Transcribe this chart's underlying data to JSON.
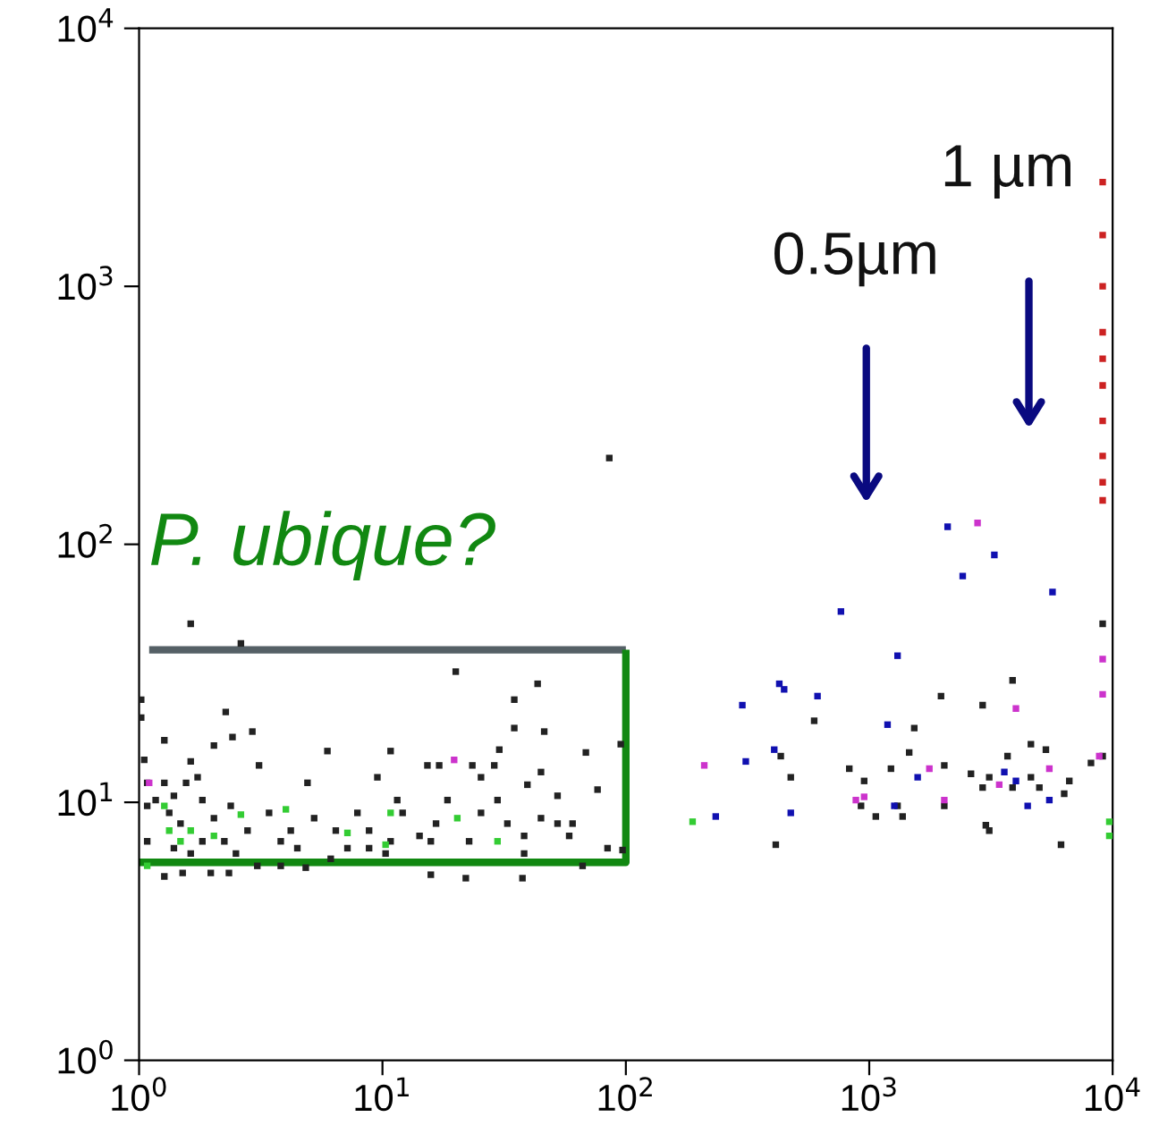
{
  "chart_data": {
    "type": "scatter",
    "log": "xy",
    "xlim": [
      1,
      10000
    ],
    "ylim": [
      1,
      10000
    ],
    "xticks": [
      {
        "value": 1,
        "label": "10$^{0}$"
      },
      {
        "value": 10,
        "label": "10$^{1}$"
      },
      {
        "value": 100,
        "label": "10$^{2}$"
      },
      {
        "value": 1000,
        "label": "10$^{3}$"
      },
      {
        "value": 10000,
        "label": "10$^{4}$"
      }
    ],
    "yticks": [
      {
        "value": 1,
        "label": "10$^{0}$"
      },
      {
        "value": 10,
        "label": "10$^{1}$"
      },
      {
        "value": 100,
        "label": "10$^{2}$"
      },
      {
        "value": 1000,
        "label": "10$^{3}$"
      },
      {
        "value": 10000,
        "label": "10$^{4}$"
      }
    ],
    "grid": false,
    "legend": false,
    "marker": "square",
    "annotations": [
      "P. ubique?",
      "0.5µm",
      "1 µm"
    ],
    "series": [
      {
        "color": "#222222",
        "x": [
          1.63,
          2.62,
          20.0,
          43.4,
          34.8,
          2.27,
          34.8,
          46.2,
          2.92,
          2.42,
          1.27,
          95.3,
          2.03,
          5.94,
          10.8,
          30.2,
          68.5,
          1.63,
          3.11,
          15.3,
          17.1,
          23.4,
          28.8,
          44.8,
          4.92,
          9.53,
          25.4,
          39.4,
          52.4,
          76.5,
          1.08,
          1.17,
          1.33,
          1.48,
          1.82,
          2.03,
          2.38,
          2.79,
          3.42,
          4.2,
          5.24,
          6.43,
          7.89,
          8.81,
          12.1,
          14.2,
          16.6,
          15.8,
          22.7,
          25.4,
          29.7,
          32.6,
          38.2,
          44.8,
          52.4,
          60.4,
          66.4,
          96.9,
          84.1,
          15.8,
          22.0,
          37.6,
          1.27,
          1.51,
          1.97,
          2.34,
          3.06,
          3.82,
          4.84,
          6.13,
          7.18,
          10.3,
          11.5,
          18.5,
          1.08,
          1.08,
          1.05,
          1.02,
          1.02,
          1.27,
          1.39,
          1.63,
          1.82,
          2.24,
          2.5,
          1.56,
          1.74,
          1.39,
          3.82,
          4.47,
          8.81,
          10.8,
          38.2,
          58.5,
          85.5,
          3880,
          1972,
          2923,
          594,
          1531,
          4615,
          5318,
          433,
          1459,
          3700,
          828,
          1228,
          2034,
          476,
          953,
          2618,
          3112,
          4615,
          6637,
          2923,
          3880,
          5000,
          6324,
          925,
          1307,
          2034,
          1064,
          1371,
          3013,
          3112,
          413,
          6138,
          8147,
          9100,
          9100
        ],
        "values": [
          49.2,
          41.3,
          32.1,
          28.8,
          25.0,
          22.4,
          19.4,
          18.8,
          18.8,
          17.9,
          17.4,
          16.8,
          16.6,
          15.8,
          15.8,
          16.0,
          15.6,
          14.4,
          13.9,
          13.9,
          13.9,
          13.9,
          13.9,
          13.1,
          11.9,
          12.5,
          12.5,
          11.7,
          10.6,
          11.2,
          9.69,
          10.2,
          9.1,
          8.27,
          10.2,
          8.68,
          9.69,
          7.77,
          9.1,
          7.77,
          8.68,
          7.77,
          9.1,
          7.77,
          9.1,
          7.41,
          8.27,
          7.06,
          7.06,
          9.1,
          10.2,
          8.27,
          7.41,
          8.68,
          8.27,
          8.27,
          5.67,
          6.53,
          6.64,
          5.24,
          5.08,
          5.08,
          5.16,
          5.32,
          5.32,
          5.32,
          5.67,
          5.67,
          5.58,
          6.04,
          6.64,
          6.33,
          10.2,
          10.2,
          7.06,
          11.9,
          14.6,
          21.3,
          25.0,
          11.9,
          6.64,
          6.33,
          7.06,
          7.06,
          6.33,
          11.9,
          12.5,
          10.6,
          7.06,
          6.64,
          6.64,
          7.06,
          6.33,
          7.41,
          216,
          29.7,
          25.8,
          23.8,
          20.7,
          19.4,
          16.8,
          16.0,
          15.1,
          15.6,
          15.1,
          13.5,
          13.5,
          13.9,
          12.5,
          12.1,
          12.9,
          12.5,
          12.5,
          12.1,
          11.4,
          11.4,
          11.4,
          10.8,
          9.69,
          9.69,
          9.69,
          8.81,
          8.81,
          8.15,
          7.77,
          6.85,
          6.85,
          14.2,
          49.2,
          15.1
        ]
      },
      {
        "color": "#33cc33",
        "x": [
          188,
          1.33,
          1.27,
          2.03,
          2.62,
          4.01,
          7.18,
          10.8,
          20.3,
          29.7,
          10.3,
          1.08,
          1.63,
          1.48,
          9690,
          9690
        ],
        "values": [
          8.41,
          7.77,
          9.69,
          7.41,
          8.96,
          9.39,
          7.61,
          9.1,
          8.68,
          7.06,
          6.85,
          5.67,
          7.77,
          7.06,
          8.41,
          7.41
        ]
      },
      {
        "color": "#1010b0",
        "x": [
          2099,
          3266,
          2421,
          5662,
          765,
          1307,
          301,
          427,
          447,
          613,
          1189,
          407,
          311,
          1581,
          3589,
          4006,
          234,
          476,
          1268,
          4477,
          5495
        ],
        "values": [
          117,
          91.0,
          75.3,
          65.3,
          54.9,
          37.0,
          23.8,
          28.8,
          27.4,
          25.8,
          20.0,
          16.0,
          14.4,
          12.5,
          13.1,
          12.1,
          8.81,
          9.1,
          9.69,
          9.69,
          10.2
        ]
      },
      {
        "color": "#cc33cc",
        "x": [
          2786,
          4006,
          210,
          1766,
          5495,
          3420,
          881,
          953,
          2034,
          8810,
          1.1,
          19.7,
          9100,
          9100
        ],
        "values": [
          121,
          23.1,
          13.9,
          13.5,
          13.5,
          11.7,
          10.2,
          10.5,
          10.2,
          15.1,
          11.9,
          14.6,
          26.2,
          35.9
        ]
      },
      {
        "color": "#cc2222",
        "x": [
          9100,
          9100,
          9100,
          9100,
          9100,
          9100,
          9100,
          9100,
          9100,
          9100
        ],
        "values": [
          2535,
          1580,
          1000,
          664,
          524,
          413,
          301,
          220,
          174,
          148
        ]
      },
      {
        "type": "line",
        "marker": "none",
        "color": "#556066",
        "x": [
          1.1,
          100
        ],
        "values": [
          39,
          39
        ]
      },
      {
        "type": "line",
        "marker": "none",
        "color": "#118811",
        "x": [
          100,
          100,
          1
        ],
        "values": [
          39,
          5.85,
          5.85
        ]
      }
    ]
  }
}
